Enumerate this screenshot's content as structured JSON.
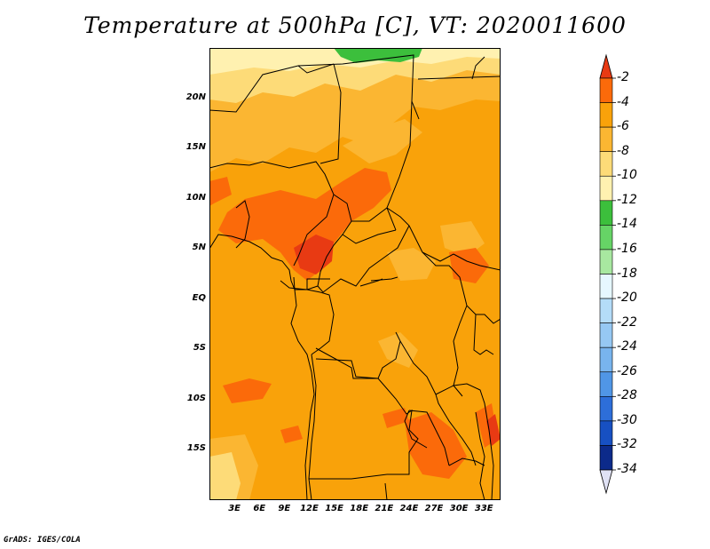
{
  "title": "Temperature at 500hPa [C], VT: 2020011600",
  "credit": "GrADS: IGES/COLA",
  "map": {
    "lon_range": [
      0,
      35
    ],
    "lat_range": [
      -20,
      25
    ],
    "lat_ticks": [
      "20N",
      "15N",
      "10N",
      "5N",
      "EQ",
      "5S",
      "10S",
      "15S"
    ],
    "lon_ticks": [
      "3E",
      "6E",
      "9E",
      "12E",
      "15E",
      "18E",
      "21E",
      "24E",
      "27E",
      "30E",
      "33E"
    ],
    "lat_values": [
      20,
      15,
      10,
      5,
      0,
      -5,
      -10,
      -15
    ],
    "lon_values": [
      3,
      6,
      9,
      12,
      15,
      18,
      21,
      24,
      27,
      30,
      33
    ],
    "dominant_range": "-6 to -4",
    "colors": {
      "-2_and_above": "#e83a13",
      "-4_to_-2": "#fb6a0a",
      "-6_to_-4": "#f9a20a",
      "-8_to_-6": "#fbb632",
      "-10_to_-8": "#fddb78",
      "-12_to_-10": "#fff1b0",
      "-14_to_-12": "#3cbf3c"
    }
  },
  "colorbar": {
    "levels": [
      "-2",
      "-4",
      "-6",
      "-8",
      "-10",
      "-12",
      "-14",
      "-16",
      "-18",
      "-20",
      "-22",
      "-24",
      "-26",
      "-28",
      "-30",
      "-32",
      "-34"
    ],
    "colors": [
      "#e83a13",
      "#fb6a0a",
      "#f9a20a",
      "#fbb632",
      "#fddb78",
      "#fff1b0",
      "#3cbf3c",
      "#66d466",
      "#a8e8a0",
      "#e6f7ff",
      "#b4dcf8",
      "#96c8f3",
      "#78b4ee",
      "#5096e6",
      "#2d6ed9",
      "#1750c2",
      "#0c2a8a",
      "#0b1a6e"
    ],
    "top_arrow": "#e83a13",
    "bottom_arrow": "#e0e2f5"
  }
}
